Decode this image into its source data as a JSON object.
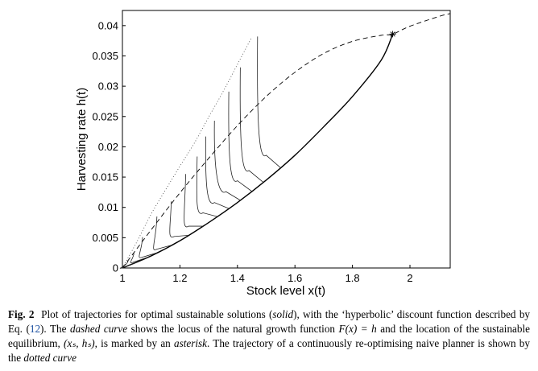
{
  "chart_data": {
    "type": "line",
    "xlabel": "Stock level x(t)",
    "ylabel": "Harvesting rate h(t)",
    "xlim": [
      1.0,
      2.14
    ],
    "ylim": [
      0,
      0.0425
    ],
    "x_ticks": [
      "1",
      "1.2",
      "1.4",
      "1.6",
      "1.8",
      "2"
    ],
    "x_tick_values": [
      1.0,
      1.2,
      1.4,
      1.6,
      1.8,
      2.0
    ],
    "y_ticks": [
      "0",
      "0.005",
      "0.01",
      "0.015",
      "0.02",
      "0.025",
      "0.03",
      "0.035",
      "0.04"
    ],
    "y_tick_values": [
      0,
      0.005,
      0.01,
      0.015,
      0.02,
      0.025,
      0.03,
      0.035,
      0.04
    ],
    "grid": false,
    "natural_growth_curve": {
      "style": "dashed",
      "x": [
        1.0,
        1.1,
        1.2,
        1.3,
        1.4,
        1.5,
        1.6,
        1.7,
        1.8,
        1.9,
        1.94,
        2.0,
        2.1,
        2.14
      ],
      "y": [
        0.0,
        0.0063,
        0.0124,
        0.0181,
        0.0235,
        0.0283,
        0.0323,
        0.0354,
        0.0374,
        0.0384,
        0.0386,
        0.0399,
        0.0415,
        0.042
      ]
    },
    "sustainable_equilibrium": {
      "marker": "asterisk",
      "x": 1.94,
      "y": 0.0386
    },
    "naive_planner_curve": {
      "style": "dotted",
      "x": [
        1.0,
        1.05,
        1.1,
        1.15,
        1.2,
        1.25,
        1.3,
        1.35,
        1.4,
        1.45
      ],
      "y": [
        0.0,
        0.0043,
        0.0089,
        0.0129,
        0.0168,
        0.0206,
        0.0249,
        0.0291,
        0.0336,
        0.0381
      ]
    },
    "envelope_curve": {
      "style": "solid",
      "x": [
        1.0,
        1.1,
        1.2,
        1.3,
        1.4,
        1.5,
        1.6,
        1.7,
        1.8,
        1.9,
        1.94
      ],
      "y": [
        0.0,
        0.002,
        0.0045,
        0.0075,
        0.0108,
        0.0145,
        0.0186,
        0.0233,
        0.0283,
        0.0343,
        0.0386
      ]
    },
    "optimal_trajectories": {
      "style": "solid",
      "start_points": [
        {
          "x": 1.02,
          "y": 0.0012
        },
        {
          "x": 1.04,
          "y": 0.0024
        },
        {
          "x": 1.07,
          "y": 0.0051
        },
        {
          "x": 1.12,
          "y": 0.0085
        },
        {
          "x": 1.17,
          "y": 0.011
        },
        {
          "x": 1.22,
          "y": 0.0155
        },
        {
          "x": 1.26,
          "y": 0.0184
        },
        {
          "x": 1.29,
          "y": 0.0217
        },
        {
          "x": 1.32,
          "y": 0.0243
        },
        {
          "x": 1.37,
          "y": 0.0291
        },
        {
          "x": 1.41,
          "y": 0.0331
        },
        {
          "x": 1.47,
          "y": 0.0382
        }
      ],
      "turn_points": [
        {
          "x": 1.0,
          "y": 0.0
        },
        {
          "x": 1.04,
          "y": 0.001
        },
        {
          "x": 1.07,
          "y": 0.0018
        },
        {
          "x": 1.12,
          "y": 0.0031
        },
        {
          "x": 1.18,
          "y": 0.0052
        },
        {
          "x": 1.23,
          "y": 0.0069
        },
        {
          "x": 1.28,
          "y": 0.0091
        },
        {
          "x": 1.32,
          "y": 0.0108
        },
        {
          "x": 1.36,
          "y": 0.0126
        },
        {
          "x": 1.4,
          "y": 0.0144
        },
        {
          "x": 1.44,
          "y": 0.0161
        },
        {
          "x": 1.5,
          "y": 0.0186
        }
      ]
    }
  },
  "caption": {
    "label": "Fig. 2",
    "text_1": "Plot of trajectories for optimal sustainable solutions (",
    "solid": "solid",
    "text_2": "), with the ‘hyperbolic’ discount function described by Eq. (",
    "eq_ref": "12",
    "text_3": "). The ",
    "dashed_curve": "dashed curve",
    "text_4": " shows the locus of the natural growth function ",
    "formula": "F(x) = h",
    "text_5": " and the location of the sustainable equilibrium, ",
    "equilibrium": "(xₛ, hₛ)",
    "text_6": ", is marked by an ",
    "asterisk": "asterisk",
    "text_7": ". The trajectory of a continuously re-optimising naive planner is shown by the ",
    "dotted_curve": "dotted curve"
  }
}
